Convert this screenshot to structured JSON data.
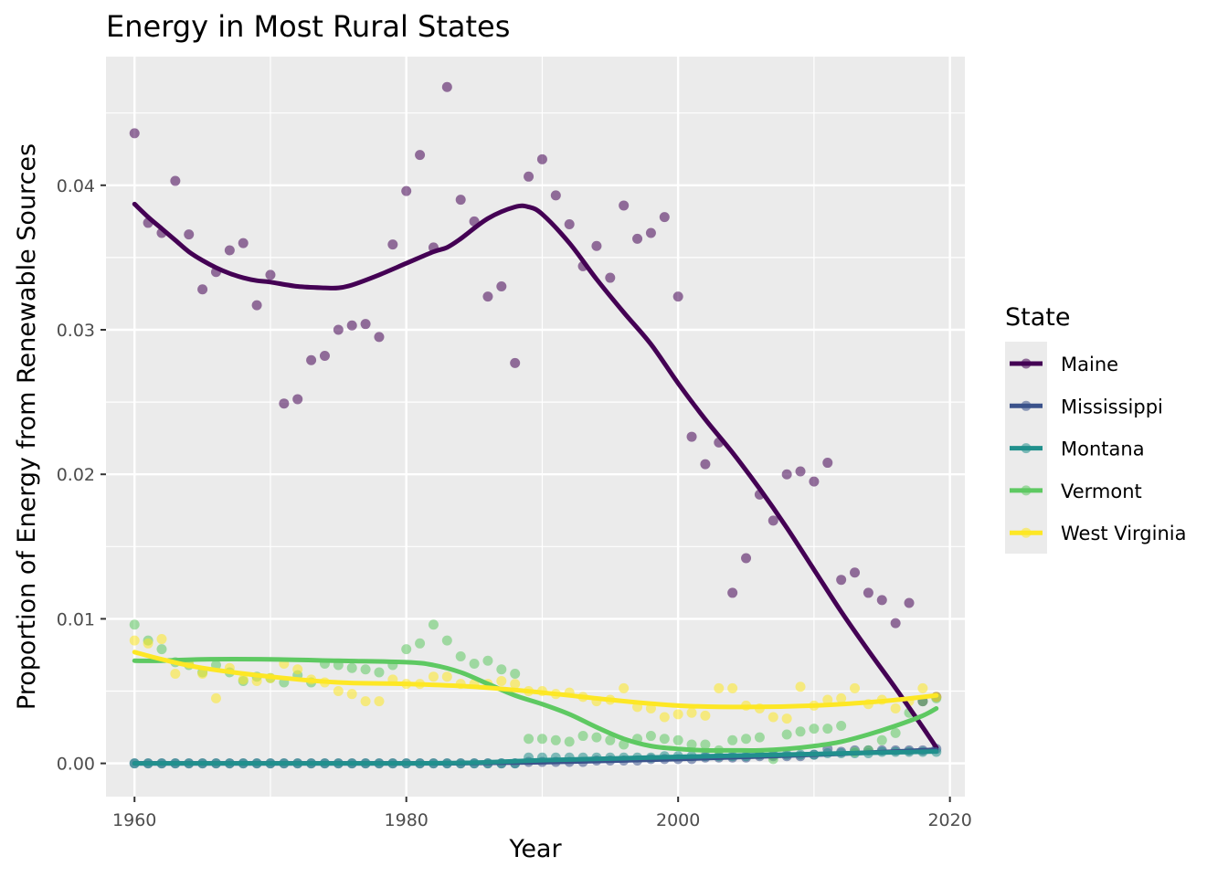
{
  "chart_data": {
    "type": "scatter",
    "title": "Energy in Most Rural States",
    "xlabel": "Year",
    "ylabel": "Proportion of Energy from Renewable Sources",
    "xlim": [
      1957.9,
      1961.1
    ],
    "x_range": [
      1957.9,
      2021.1
    ],
    "y_range": [
      -0.0023,
      0.0489
    ],
    "x_ticks": [
      1960,
      1980,
      2000,
      2020
    ],
    "x_tick_labels": [
      "1960",
      "1980",
      "2000",
      "2020"
    ],
    "y_ticks": [
      0,
      0.01,
      0.02,
      0.03,
      0.04
    ],
    "y_tick_labels": [
      "0.00",
      "0.01",
      "0.02",
      "0.03",
      "0.04"
    ],
    "grid": true,
    "legend": {
      "title": "State",
      "position": "right"
    },
    "years": [
      1960,
      1961,
      1962,
      1963,
      1964,
      1965,
      1966,
      1967,
      1968,
      1969,
      1970,
      1971,
      1972,
      1973,
      1974,
      1975,
      1976,
      1977,
      1978,
      1979,
      1980,
      1981,
      1982,
      1983,
      1984,
      1985,
      1986,
      1987,
      1988,
      1989,
      1990,
      1991,
      1992,
      1993,
      1994,
      1995,
      1996,
      1997,
      1998,
      1999,
      2000,
      2001,
      2002,
      2003,
      2004,
      2005,
      2006,
      2007,
      2008,
      2009,
      2010,
      2011,
      2012,
      2013,
      2014,
      2015,
      2016,
      2017,
      2018,
      2019
    ],
    "series": [
      {
        "name": "Maine",
        "color": "#440154",
        "values": [
          0.0436,
          0.0374,
          0.0367,
          0.0403,
          0.0366,
          0.0328,
          0.034,
          0.0355,
          0.036,
          0.0317,
          0.0338,
          0.0249,
          0.0252,
          0.0279,
          0.0282,
          0.03,
          0.0303,
          0.0304,
          0.0295,
          0.0359,
          0.0396,
          0.0421,
          0.0357,
          0.0468,
          0.039,
          0.0375,
          0.0323,
          0.033,
          0.0277,
          0.0406,
          0.0418,
          0.0393,
          0.0373,
          0.0344,
          0.0358,
          0.0336,
          0.0386,
          0.0363,
          0.0367,
          0.0378,
          0.0323,
          0.0226,
          0.0207,
          0.0222,
          0.0118,
          0.0142,
          0.0186,
          0.0168,
          0.02,
          0.0202,
          0.0195,
          0.0208,
          0.0127,
          0.0132,
          0.0118,
          0.0113,
          0.0097,
          0.0111,
          0.0043,
          0.0046
        ],
        "smooth_x": [
          1960,
          1961,
          1962,
          1963,
          1964,
          1965,
          1966,
          1967,
          1968,
          1969,
          1970,
          1972,
          1974,
          1975,
          1976,
          1978,
          1980,
          1982,
          1983,
          1984,
          1986,
          1988,
          1989,
          1990,
          1992,
          1994,
          1996,
          1998,
          2000,
          2002,
          2004,
          2006,
          2008,
          2010,
          2012,
          2014,
          2016,
          2018,
          2019
        ],
        "smooth_y": [
          0.0387,
          0.0378,
          0.037,
          0.0362,
          0.0354,
          0.0348,
          0.0343,
          0.0339,
          0.0336,
          0.0334,
          0.0333,
          0.033,
          0.0329,
          0.0329,
          0.0331,
          0.0338,
          0.0346,
          0.0354,
          0.0357,
          0.0363,
          0.0377,
          0.0385,
          0.0385,
          0.038,
          0.036,
          0.0335,
          0.0312,
          0.029,
          0.0263,
          0.0238,
          0.0215,
          0.019,
          0.0163,
          0.0134,
          0.0105,
          0.0078,
          0.0052,
          0.0025,
          0.0011
        ]
      },
      {
        "name": "Mississippi",
        "color": "#3b528b",
        "values": [
          0,
          0,
          0,
          0,
          0,
          0,
          0,
          0,
          0,
          0,
          0,
          0,
          0,
          0,
          0,
          0,
          0,
          0,
          0,
          0,
          0,
          0,
          0,
          0,
          0,
          0,
          0,
          0,
          0,
          0.0001,
          0.0001,
          0.0001,
          0.0001,
          0.0001,
          0.0002,
          0.0002,
          0.0002,
          0.0002,
          0.0003,
          0.0003,
          0.0003,
          0.0003,
          0.0004,
          0.0004,
          0.0004,
          0.0004,
          0.0005,
          0.0005,
          0.0005,
          0.0005,
          0.0006,
          0.001,
          0.0008,
          0.0009,
          0.0009,
          0.0009,
          0.0009,
          0.0009,
          0.0009,
          0.001
        ],
        "smooth_x": [
          1960,
          1970,
          1980,
          1985,
          1990,
          1995,
          2000,
          2005,
          2010,
          2015,
          2019
        ],
        "smooth_y": [
          0,
          0,
          0,
          2e-05,
          8e-05,
          0.00018,
          0.0003,
          0.00045,
          0.0006,
          0.00078,
          0.00095
        ]
      },
      {
        "name": "Montana",
        "color": "#21908d",
        "values": [
          0,
          0,
          0,
          0,
          0,
          0,
          0,
          0,
          0,
          0,
          0,
          0,
          0,
          0,
          0,
          0,
          0,
          0,
          0,
          0,
          0,
          0,
          0,
          0,
          0,
          0,
          0,
          0,
          0,
          0.0004,
          0.0004,
          0.0004,
          0.0004,
          0.0004,
          0.0004,
          0.0004,
          0.0004,
          0.0004,
          0.0004,
          0.0005,
          0.0005,
          0.0005,
          0.0005,
          0.0005,
          0.0005,
          0.0005,
          0.0006,
          0.0006,
          0.0006,
          0.0006,
          0.0006,
          0.0007,
          0.0007,
          0.0007,
          0.0007,
          0.0008,
          0.0008,
          0.0008,
          0.0008,
          0.0008
        ],
        "smooth_x": [
          1960,
          1970,
          1980,
          1985,
          1990,
          1995,
          2000,
          2005,
          2010,
          2015,
          2019
        ],
        "smooth_y": [
          0,
          0,
          0,
          5e-05,
          0.00022,
          0.00033,
          0.00045,
          0.00055,
          0.00065,
          0.00075,
          0.00082
        ]
      },
      {
        "name": "Vermont",
        "color": "#5ec962",
        "values": [
          0.0096,
          0.0085,
          0.0079,
          0.007,
          0.0068,
          0.0063,
          0.0068,
          0.0063,
          0.0057,
          0.006,
          0.0059,
          0.0056,
          0.0061,
          0.0056,
          0.0069,
          0.0068,
          0.0066,
          0.0065,
          0.0063,
          0.0068,
          0.0079,
          0.0083,
          0.0096,
          0.0085,
          0.0074,
          0.0069,
          0.0071,
          0.0065,
          0.0062,
          0.0017,
          0.0017,
          0.0016,
          0.0015,
          0.0019,
          0.0018,
          0.0016,
          0.0013,
          0.0017,
          0.0019,
          0.0017,
          0.0016,
          0.0013,
          0.0013,
          0.0009,
          0.0016,
          0.0017,
          0.0018,
          0.0003,
          0.002,
          0.0022,
          0.0024,
          0.0024,
          0.0026,
          0.0008,
          0.0009,
          0.0016,
          0.0021,
          0.0035,
          0.0043,
          0.0045
        ],
        "smooth_x": [
          1960,
          1962,
          1965,
          1970,
          1975,
          1980,
          1982,
          1984,
          1986,
          1988,
          1990,
          1992,
          1994,
          1996,
          1998,
          2000,
          2002,
          2004,
          2006,
          2008,
          2010,
          2012,
          2014,
          2016,
          2018,
          2019
        ],
        "smooth_y": [
          0.0071,
          0.0071,
          0.0072,
          0.0072,
          0.0071,
          0.007,
          0.0068,
          0.0063,
          0.0055,
          0.0047,
          0.0041,
          0.0034,
          0.0025,
          0.0017,
          0.0012,
          0.001,
          0.0009,
          0.0009,
          0.0009,
          0.001,
          0.0012,
          0.0015,
          0.002,
          0.0026,
          0.0033,
          0.0038
        ]
      },
      {
        "name": "West Virginia",
        "color": "#fde725",
        "values": [
          0.0085,
          0.0083,
          0.0086,
          0.0062,
          0.0069,
          0.0062,
          0.0045,
          0.0066,
          0.0058,
          0.0057,
          0.0059,
          0.0069,
          0.0065,
          0.0058,
          0.0056,
          0.005,
          0.0048,
          0.0043,
          0.0043,
          0.0058,
          0.0055,
          0.0055,
          0.006,
          0.006,
          0.0055,
          0.0055,
          0.0055,
          0.0057,
          0.0055,
          0.005,
          0.005,
          0.0048,
          0.0049,
          0.0046,
          0.0043,
          0.0044,
          0.0052,
          0.0039,
          0.0038,
          0.0032,
          0.0034,
          0.0035,
          0.0033,
          0.0052,
          0.0052,
          0.004,
          0.0038,
          0.0032,
          0.0031,
          0.0053,
          0.004,
          0.0044,
          0.0045,
          0.0052,
          0.0041,
          0.0044,
          0.0038,
          0.0043,
          0.0052,
          0.0046
        ],
        "smooth_x": [
          1960,
          1962,
          1965,
          1970,
          1975,
          1980,
          1985,
          1990,
          1995,
          2000,
          2005,
          2010,
          2015,
          2019
        ],
        "smooth_y": [
          0.0077,
          0.0072,
          0.0066,
          0.006,
          0.0056,
          0.0055,
          0.0053,
          0.0049,
          0.0044,
          0.004,
          0.0039,
          0.004,
          0.0043,
          0.0047
        ]
      }
    ]
  }
}
